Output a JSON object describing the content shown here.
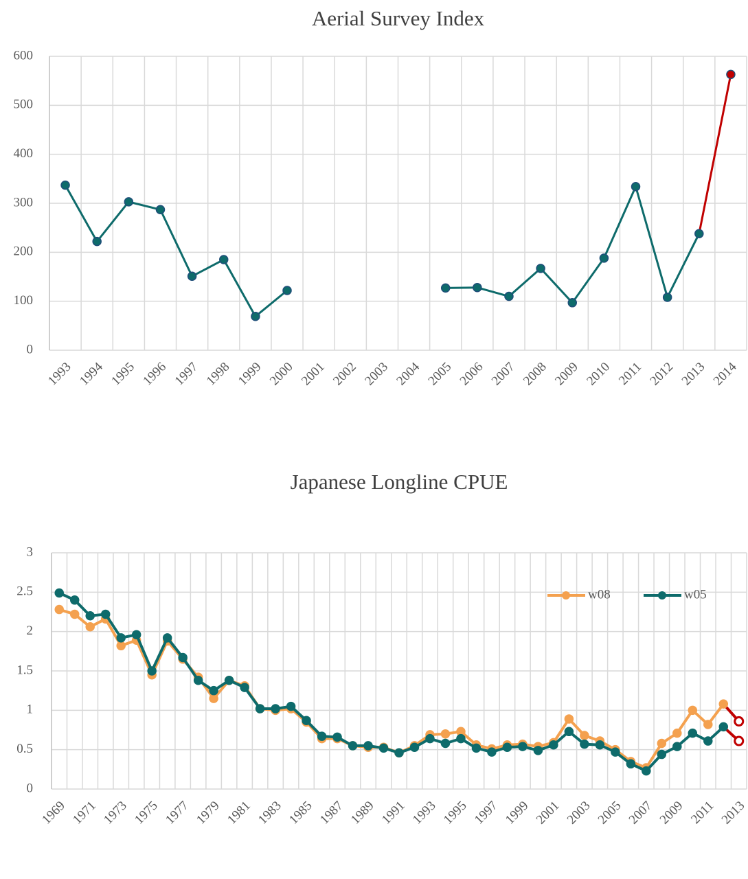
{
  "chart_data": [
    {
      "type": "line",
      "title": "Aerial Survey Index",
      "categories": [
        "1993",
        "1994",
        "1995",
        "1996",
        "1997",
        "1998",
        "1999",
        "2000",
        "2001",
        "2002",
        "2003",
        "2004",
        "2005",
        "2006",
        "2007",
        "2008",
        "2009",
        "2010",
        "2011",
        "2012",
        "2013",
        "2014"
      ],
      "values": [
        337,
        222,
        303,
        287,
        151,
        185,
        69,
        122,
        null,
        null,
        null,
        null,
        127,
        128,
        110,
        167,
        97,
        188,
        334,
        108,
        238,
        563
      ],
      "color": "#0e6b6b",
      "last_point": {
        "color": "#c00000",
        "marker": "filled"
      },
      "ylim": [
        0,
        600
      ],
      "yticks": [
        0,
        100,
        200,
        300,
        400,
        500,
        600
      ],
      "grid": true
    },
    {
      "type": "line",
      "title": "Japanese Longline CPUE",
      "categories": [
        "1969",
        null,
        "1971",
        null,
        "1973",
        null,
        "1975",
        null,
        "1977",
        null,
        "1979",
        null,
        "1981",
        null,
        "1983",
        null,
        "1985",
        null,
        "1987",
        null,
        "1989",
        null,
        "1991",
        null,
        "1993",
        null,
        "1995",
        null,
        "1997",
        null,
        "1999",
        null,
        "2001",
        null,
        "2003",
        null,
        "2005",
        null,
        "2007",
        null,
        "2009",
        null,
        "2011",
        null,
        "2013"
      ],
      "series": [
        {
          "name": "w08",
          "color": "#f4a14f",
          "values": [
            2.28,
            2.22,
            2.06,
            2.16,
            1.82,
            1.89,
            1.45,
            1.88,
            1.65,
            1.42,
            1.15,
            1.38,
            1.31,
            1.02,
            1.0,
            1.02,
            0.85,
            0.64,
            0.64,
            0.55,
            0.53,
            0.53,
            0.46,
            0.55,
            0.69,
            0.7,
            0.73,
            0.56,
            0.51,
            0.56,
            0.57,
            0.54,
            0.59,
            0.89,
            0.68,
            0.61,
            0.5,
            0.35,
            0.27,
            0.58,
            0.71,
            1.0,
            0.82,
            1.08,
            0.86
          ]
        },
        {
          "name": "w05",
          "color": "#0e6b6b",
          "values": [
            2.49,
            2.4,
            2.2,
            2.22,
            1.92,
            1.96,
            1.5,
            1.92,
            1.67,
            1.38,
            1.25,
            1.38,
            1.29,
            1.02,
            1.02,
            1.05,
            0.87,
            0.67,
            0.66,
            0.55,
            0.55,
            0.52,
            0.46,
            0.53,
            0.64,
            0.58,
            0.64,
            0.52,
            0.47,
            0.53,
            0.54,
            0.49,
            0.56,
            0.73,
            0.57,
            0.56,
            0.47,
            0.32,
            0.23,
            0.44,
            0.54,
            0.71,
            0.61,
            0.79,
            0.61
          ]
        }
      ],
      "last_point": {
        "color": "#c00000",
        "marker": "open"
      },
      "ylim": [
        0,
        3
      ],
      "yticks": [
        0,
        0.5,
        1,
        1.5,
        2,
        2.5,
        3
      ],
      "grid": true,
      "legend": "upper right"
    }
  ]
}
